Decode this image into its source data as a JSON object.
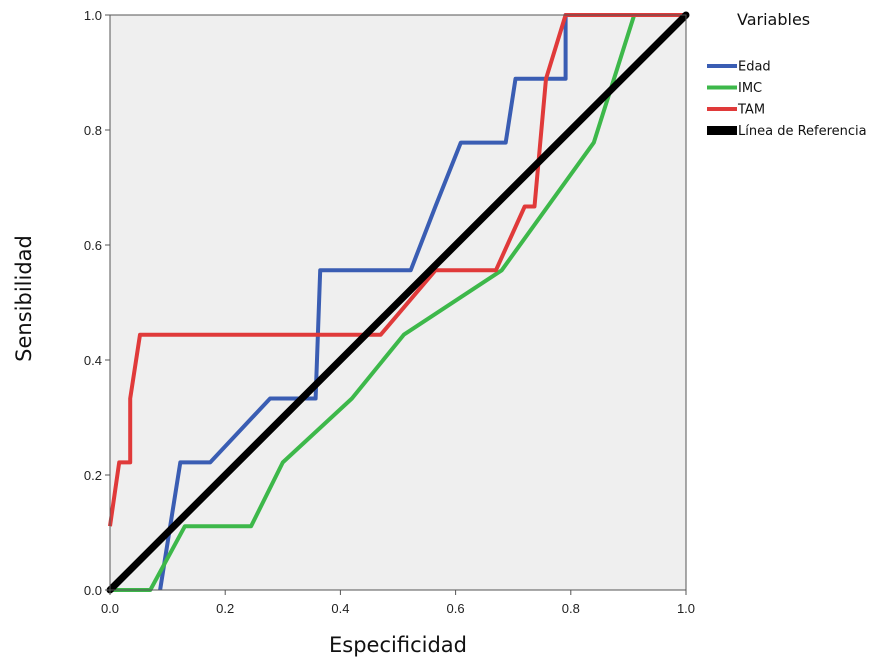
{
  "chart_data": {
    "type": "line",
    "xlabel": "Especificidad",
    "ylabel": "Sensibilidad",
    "xlim": [
      0,
      1
    ],
    "ylim": [
      0,
      1
    ],
    "xticks": [
      "0.0",
      "0.2",
      "0.4",
      "0.6",
      "0.8",
      "1.0"
    ],
    "yticks": [
      "0.0",
      "0.2",
      "0.4",
      "0.6",
      "0.8",
      "1.0"
    ],
    "grid": false,
    "background": "#efefef",
    "legend": {
      "title": "Variables",
      "placement": "right"
    },
    "series": [
      {
        "name": "Edad",
        "color": "#3a5db3",
        "points": [
          [
            0.087,
            0.0
          ],
          [
            0.122,
            0.222
          ],
          [
            0.174,
            0.222
          ],
          [
            0.278,
            0.333
          ],
          [
            0.357,
            0.333
          ],
          [
            0.365,
            0.556
          ],
          [
            0.522,
            0.556
          ],
          [
            0.565,
            0.667
          ],
          [
            0.609,
            0.778
          ],
          [
            0.687,
            0.778
          ],
          [
            0.704,
            0.889
          ],
          [
            0.791,
            0.889
          ],
          [
            0.791,
            1.0
          ],
          [
            1.0,
            1.0
          ]
        ]
      },
      {
        "name": "IMC",
        "color": "#3db84a",
        "points": [
          [
            0.0,
            0.0
          ],
          [
            0.07,
            0.0
          ],
          [
            0.13,
            0.111
          ],
          [
            0.245,
            0.111
          ],
          [
            0.3,
            0.222
          ],
          [
            0.42,
            0.333
          ],
          [
            0.51,
            0.444
          ],
          [
            0.68,
            0.556
          ],
          [
            0.84,
            0.778
          ],
          [
            0.91,
            1.0
          ],
          [
            1.0,
            1.0
          ]
        ]
      },
      {
        "name": "TAM",
        "color": "#e03a3a",
        "points": [
          [
            0.0,
            0.111
          ],
          [
            0.016,
            0.222
          ],
          [
            0.035,
            0.222
          ],
          [
            0.035,
            0.333
          ],
          [
            0.052,
            0.444
          ],
          [
            0.47,
            0.444
          ],
          [
            0.565,
            0.556
          ],
          [
            0.67,
            0.556
          ],
          [
            0.72,
            0.667
          ],
          [
            0.737,
            0.667
          ],
          [
            0.757,
            0.889
          ],
          [
            0.791,
            1.0
          ],
          [
            1.0,
            1.0
          ]
        ]
      },
      {
        "name": "Línea de Referencia",
        "color": "#000000",
        "points": [
          [
            0.0,
            0.0
          ],
          [
            1.0,
            1.0
          ]
        ]
      }
    ]
  }
}
